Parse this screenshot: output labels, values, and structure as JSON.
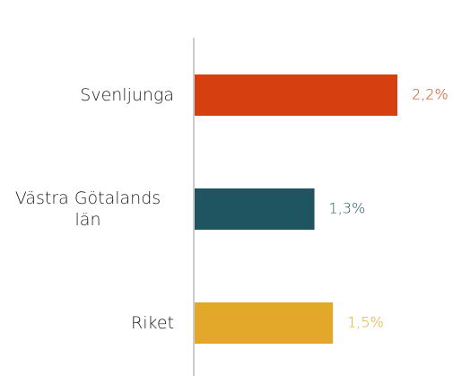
{
  "chart_data": {
    "type": "bar",
    "orientation": "horizontal",
    "categories": [
      "Svenljunga",
      "Västra Götalands län",
      "Riket"
    ],
    "values": [
      2.2,
      1.3,
      1.5
    ],
    "value_labels": [
      "2,2%",
      "1,3%",
      "1,5%"
    ],
    "colors": [
      "#d63f0f",
      "#1f5560",
      "#e3a829"
    ]
  }
}
